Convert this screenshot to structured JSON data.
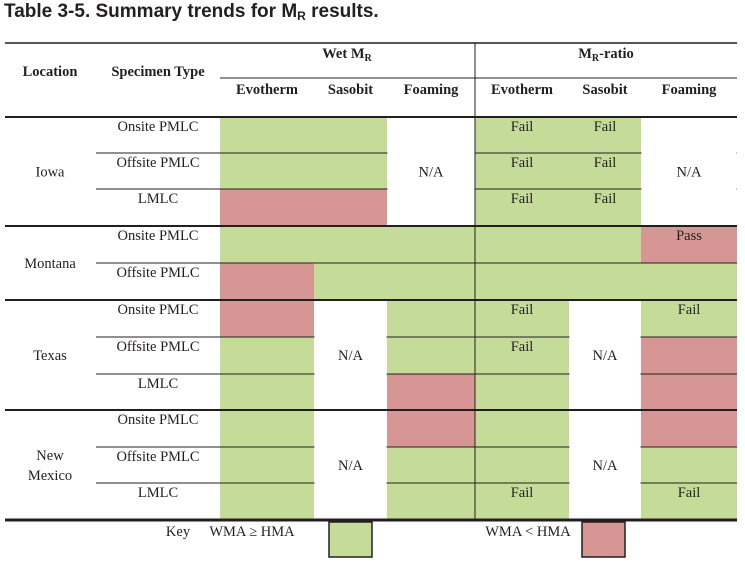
{
  "title": {
    "prefix": "Table 3-5.  Summary trends for M",
    "sub": "R",
    "suffix": " results."
  },
  "headers": {
    "location": "Location",
    "specimen": "Specimen Type",
    "wet": "Wet M",
    "wet_sub": "R",
    "ratio": "M",
    "ratio_sub": "R",
    "ratio_suffix": "-ratio",
    "sub": [
      "Evotherm",
      "Sasobit",
      "Foaming",
      "Evotherm",
      "Sasobit",
      "Foaming"
    ]
  },
  "colors": {
    "green": "#c5dc98",
    "red": "#d69794",
    "white": "#ffffff"
  },
  "groups": [
    {
      "location": [
        "Iowa"
      ],
      "rows": 3
    },
    {
      "location": [
        "Montana"
      ],
      "rows": 2
    },
    {
      "location": [
        "Texas"
      ],
      "rows": 3
    },
    {
      "location": [
        "New",
        "Mexico"
      ],
      "rows": 3
    }
  ],
  "rows": [
    {
      "specimen": "Onsite PMLC",
      "cells": [
        "G",
        "G",
        "W",
        "G",
        "G",
        "W"
      ],
      "labels": [
        "",
        "",
        "",
        "Fail",
        "Fail",
        ""
      ]
    },
    {
      "specimen": "Offsite PMLC",
      "cells": [
        "G",
        "G",
        "W",
        "G",
        "G",
        "W"
      ],
      "labels": [
        "",
        "",
        "",
        "Fail",
        "Fail",
        ""
      ]
    },
    {
      "specimen": "LMLC",
      "cells": [
        "R",
        "R",
        "W",
        "G",
        "G",
        "W"
      ],
      "labels": [
        "",
        "",
        "",
        "Fail",
        "Fail",
        ""
      ]
    },
    {
      "specimen": "Onsite PMLC",
      "cells": [
        "G",
        "G",
        "G",
        "G",
        "G",
        "R"
      ],
      "labels": [
        "",
        "",
        "",
        "",
        "",
        "Pass"
      ]
    },
    {
      "specimen": "Offsite PMLC",
      "cells": [
        "R",
        "G",
        "G",
        "G",
        "G",
        "G"
      ],
      "labels": [
        "",
        "",
        "",
        "",
        "",
        ""
      ]
    },
    {
      "specimen": "Onsite PMLC",
      "cells": [
        "R",
        "W",
        "G",
        "G",
        "W",
        "G"
      ],
      "labels": [
        "",
        "",
        "",
        "Fail",
        "",
        "Fail"
      ]
    },
    {
      "specimen": "Offsite PMLC",
      "cells": [
        "G",
        "W",
        "G",
        "G",
        "W",
        "R"
      ],
      "labels": [
        "",
        "",
        "",
        "Fail",
        "",
        ""
      ]
    },
    {
      "specimen": "LMLC",
      "cells": [
        "G",
        "W",
        "R",
        "G",
        "W",
        "R"
      ],
      "labels": [
        "",
        "",
        "",
        "",
        "",
        ""
      ]
    },
    {
      "specimen": "Onsite PMLC",
      "cells": [
        "G",
        "W",
        "R",
        "G",
        "W",
        "R"
      ],
      "labels": [
        "",
        "",
        "",
        "",
        "",
        ""
      ]
    },
    {
      "specimen": "Offsite PMLC",
      "cells": [
        "G",
        "W",
        "G",
        "G",
        "W",
        "G"
      ],
      "labels": [
        "",
        "",
        "",
        "",
        "",
        ""
      ]
    },
    {
      "specimen": "LMLC",
      "cells": [
        "G",
        "W",
        "G",
        "G",
        "W",
        "G"
      ],
      "labels": [
        "",
        "",
        "",
        "Fail",
        "",
        "Fail"
      ]
    }
  ],
  "na_blocks": [
    {
      "group": 0,
      "column": 2,
      "label": "N/A"
    },
    {
      "group": 0,
      "column": 5,
      "label": "N/A"
    },
    {
      "group": 2,
      "column": 1,
      "label": "N/A"
    },
    {
      "group": 2,
      "column": 4,
      "label": "N/A"
    },
    {
      "group": 3,
      "column": 1,
      "label": "N/A"
    },
    {
      "group": 3,
      "column": 4,
      "label": "N/A"
    }
  ],
  "key": {
    "label": "Key",
    "green_text": "WMA ≥ HMA",
    "red_text": "WMA < HMA"
  }
}
